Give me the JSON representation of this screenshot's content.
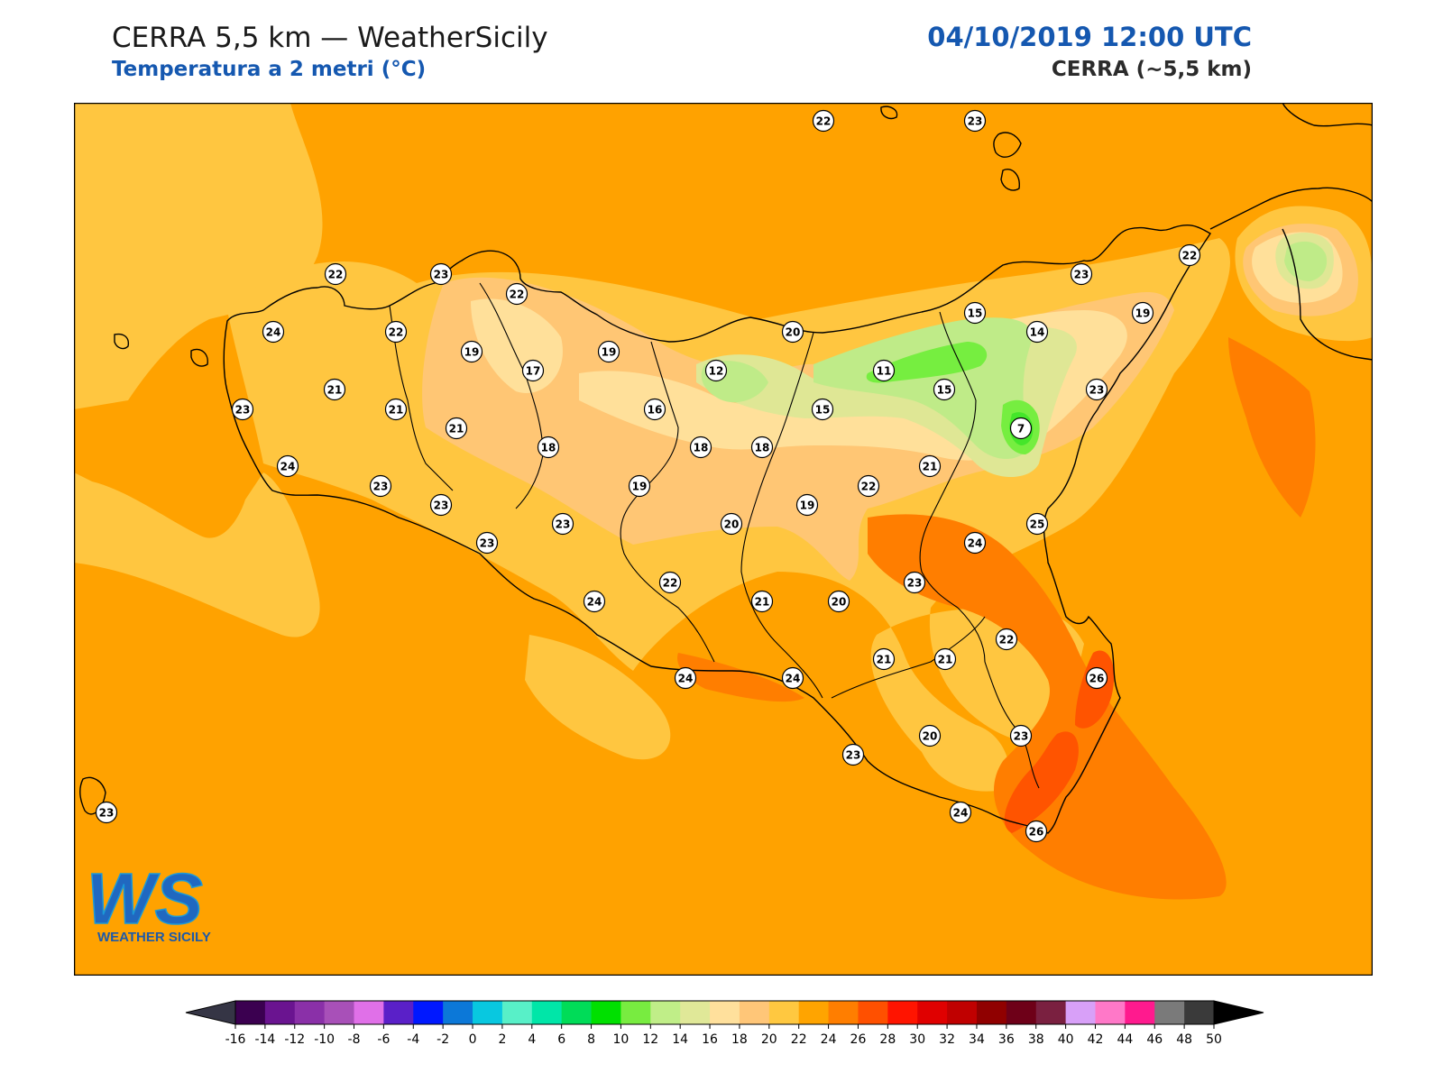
{
  "header": {
    "title_left": "CERRA 5,5 km — WeatherSicily",
    "subtitle_left": "Temperatura a 2 metri (°C)",
    "title_right": "04/10/2019 12:00 UTC",
    "subtitle_right": "CERRA (~5,5 km)"
  },
  "logo": {
    "mark": "WS",
    "name": "WEATHER SICILY"
  },
  "colors": {
    "sea_base": "#ffa200",
    "t20_22": "#ffc640",
    "t18_20": "#ffc674",
    "t16_18": "#ffe09a",
    "t14_16": "#dfe795",
    "t12_14": "#bfeb88",
    "t10_12": "#76ee40",
    "t8_10": "#44e62a",
    "t24_26": "#ff7e00",
    "t26_28": "#ff5400",
    "coast": "#000000"
  },
  "stations": [
    {
      "label": "22"
    },
    {
      "label": "23"
    },
    {
      "label": "22"
    },
    {
      "label": "23"
    },
    {
      "label": "22"
    },
    {
      "label": "23"
    },
    {
      "label": "22"
    },
    {
      "label": "24"
    },
    {
      "label": "22"
    },
    {
      "label": "19"
    },
    {
      "label": "17"
    },
    {
      "label": "19"
    },
    {
      "label": "20"
    },
    {
      "label": "15"
    },
    {
      "label": "14"
    },
    {
      "label": "19"
    },
    {
      "label": "21"
    },
    {
      "label": "21"
    },
    {
      "label": "12"
    },
    {
      "label": "11"
    },
    {
      "label": "15"
    },
    {
      "label": "23"
    },
    {
      "label": "23"
    },
    {
      "label": "21"
    },
    {
      "label": "16"
    },
    {
      "label": "15"
    },
    {
      "label": "7"
    },
    {
      "label": "18"
    },
    {
      "label": "18"
    },
    {
      "label": "18"
    },
    {
      "label": "21"
    },
    {
      "label": "24"
    },
    {
      "label": "23"
    },
    {
      "label": "19"
    },
    {
      "label": "22"
    },
    {
      "label": "23"
    },
    {
      "label": "23"
    },
    {
      "label": "20"
    },
    {
      "label": "19"
    },
    {
      "label": "25"
    },
    {
      "label": "23"
    },
    {
      "label": "24"
    },
    {
      "label": "23"
    },
    {
      "label": "24"
    },
    {
      "label": "22"
    },
    {
      "label": "21"
    },
    {
      "label": "20"
    },
    {
      "label": "22"
    },
    {
      "label": "21"
    },
    {
      "label": "21"
    },
    {
      "label": "24"
    },
    {
      "label": "24"
    },
    {
      "label": "26"
    },
    {
      "label": "23"
    },
    {
      "label": "20"
    },
    {
      "label": "23"
    },
    {
      "label": "23"
    },
    {
      "label": "24"
    },
    {
      "label": "26"
    }
  ],
  "colorbar": {
    "ticks": [
      "-16",
      "-14",
      "-12",
      "-10",
      "-8",
      "-6",
      "-4",
      "-2",
      "0",
      "2",
      "4",
      "6",
      "8",
      "10",
      "12",
      "14",
      "16",
      "18",
      "20",
      "22",
      "24",
      "26",
      "28",
      "30",
      "32",
      "34",
      "36",
      "38",
      "40",
      "42",
      "44",
      "46",
      "48",
      "50"
    ],
    "colors": [
      "#3b0050",
      "#6a1490",
      "#8a30a8",
      "#a850b8",
      "#e070e8",
      "#5a20c8",
      "#0018ff",
      "#0c78d8",
      "#08c8e0",
      "#58f0c8",
      "#00e6a8",
      "#00dc58",
      "#00e000",
      "#78ec40",
      "#c0ee88",
      "#e0e898",
      "#ffe09c",
      "#ffc678",
      "#ffc840",
      "#ffa400",
      "#ff7e00",
      "#ff5000",
      "#ff1400",
      "#e00000",
      "#c00000",
      "#900000",
      "#6e0018",
      "#7a2040",
      "#d8a0f8",
      "#ff78c8",
      "#ff1a8e",
      "#7a7a7a",
      "#3a3a3a"
    ],
    "under_color": "#353545",
    "over_color": "#000000"
  }
}
